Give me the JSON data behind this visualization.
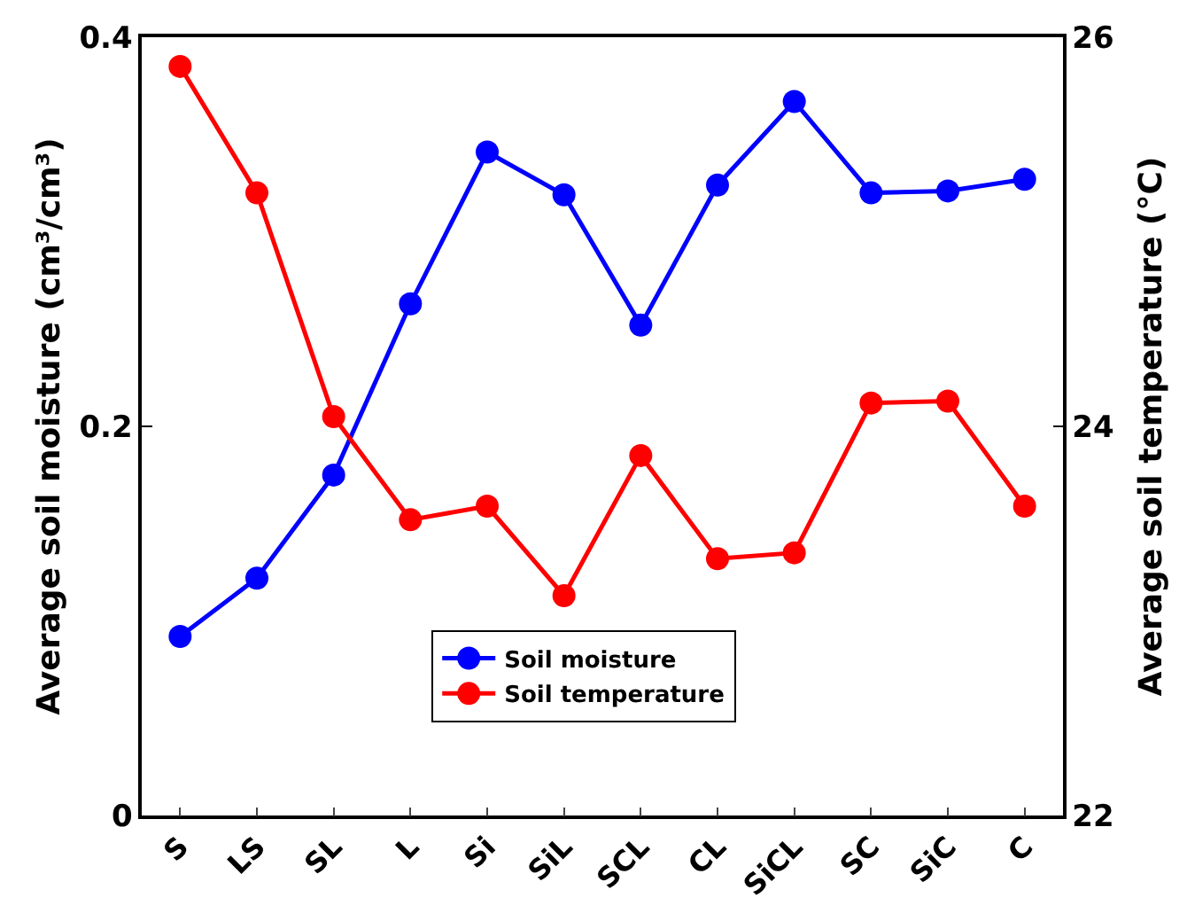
{
  "chart_data": {
    "type": "line",
    "ylabel": "Average soil moisture (cm³/cm³)",
    "y2label": "Average soil temperature (°C)",
    "categories": [
      "S",
      "LS",
      "SL",
      "L",
      "Si",
      "SiL",
      "SCL",
      "CL",
      "SiCL",
      "SC",
      "SiC",
      "C"
    ],
    "series": [
      {
        "name": "Soil moisture",
        "color": "#0000ff",
        "values": [
          0.092,
          0.122,
          0.175,
          0.263,
          0.341,
          0.319,
          0.252,
          0.324,
          0.367,
          0.32,
          0.321,
          0.327
        ]
      },
      {
        "name": "Soil temperature",
        "color": "#ff0000",
        "axis": "y2",
        "values": [
          25.85,
          25.2,
          24.05,
          23.52,
          23.59,
          23.13,
          23.85,
          23.32,
          23.35,
          24.12,
          24.13,
          23.59
        ]
      }
    ],
    "ylim": [
      0,
      0.4
    ],
    "yticks": [
      0,
      0.2,
      0.4
    ],
    "y2lim": [
      22,
      26
    ],
    "y2ticks": [
      22,
      24,
      26
    ],
    "grid": false,
    "legend": "bottom",
    "marker": "circle",
    "line_style": "solid"
  }
}
